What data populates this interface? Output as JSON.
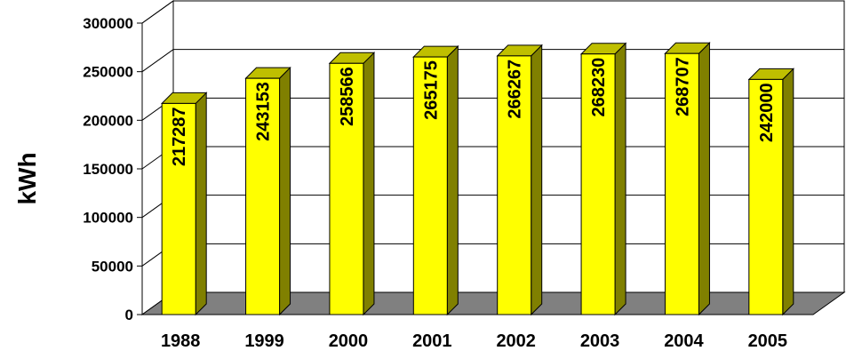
{
  "chart_data": {
    "type": "bar",
    "title": "",
    "xlabel": "",
    "ylabel": "kWh",
    "categories": [
      "1988",
      "1999",
      "2000",
      "2001",
      "2002",
      "2003",
      "2004",
      "2005"
    ],
    "values": [
      217287,
      243153,
      258566,
      265175,
      266267,
      268230,
      268707,
      242000
    ],
    "ylim": [
      0,
      300000
    ],
    "yticks": [
      "0",
      "50000",
      "100000",
      "150000",
      "200000",
      "250000",
      "300000"
    ],
    "grid": true,
    "legend": "none",
    "style": "3d-columns",
    "data_labels": "inside-vertical",
    "colors": {
      "bar_front": "#FFFF00",
      "bar_side": "#808000",
      "bar_top": "#BFBF00",
      "floor": "#808080",
      "gridline": "#000000"
    }
  }
}
